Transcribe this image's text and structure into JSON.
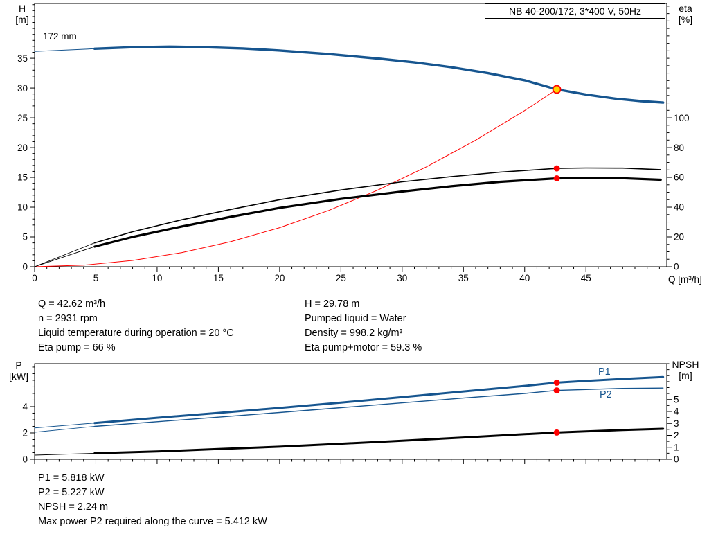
{
  "title_box": "NB 40-200/172, 3*400 V, 50Hz",
  "impeller_label": "172 mm",
  "axis_labels": {
    "h": "H",
    "h_unit": "[m]",
    "eta": "eta",
    "eta_unit": "[%]",
    "q": "Q [m³/h]",
    "p": "P",
    "p_unit": "[kW]",
    "npsh": "NPSH",
    "npsh_unit": "[m]"
  },
  "curve_labels": {
    "p1": "P1",
    "p2": "P2"
  },
  "info_top_left": [
    "Q = 42.62 m³/h",
    "n = 2931 rpm",
    "Liquid temperature during operation = 20 °C",
    "Eta pump = 66 %"
  ],
  "info_top_right": [
    "H = 29.78 m",
    "Pumped liquid = Water",
    "Density = 998.2 kg/m³",
    "Eta pump+motor = 59.3 %"
  ],
  "info_bottom": [
    "P1 = 5.818 kW",
    "P2 = 5.227 kW",
    "NPSH = 2.24 m",
    "Max power P2 required along the curve = 5.412 kW"
  ],
  "colors": {
    "curve_blue": "#16558f",
    "curve_black": "#000000",
    "curve_red": "#ff0000",
    "marker_red": "#ff0000",
    "duty_point_fill": "#ffd500"
  },
  "duty_point": {
    "q_m3h": 42.62,
    "h_m": 29.78,
    "eta_pump_pct": 66,
    "eta_pump_motor_pct": 59.3,
    "p1_kw": 5.818,
    "p2_kw": 5.227,
    "npsh_m": 2.24
  },
  "chart_data": [
    {
      "id": "head_eta_chart",
      "type": "line",
      "title": "NB 40-200/172, 3*400 V, 50Hz",
      "xlabel": "Q [m³/h]",
      "ylabel_left": "H [m]",
      "ylabel_right": "eta [%]",
      "grid": false,
      "plot": {
        "l": 50,
        "t": 5,
        "r": 963,
        "b": 385
      },
      "x_range": [
        0,
        51.6
      ],
      "y_left_range": [
        0,
        44.2
      ],
      "y_right_range": [
        0,
        176.8
      ],
      "x_ticks": {
        "majors": [
          0,
          5,
          10,
          15,
          20,
          25,
          30,
          35,
          40,
          45
        ],
        "minor_step": 1,
        "labels": true
      },
      "y_left_ticks": {
        "majors": [
          0,
          5,
          10,
          15,
          20,
          25,
          30,
          35
        ],
        "minor_step": 1,
        "labels": true
      },
      "y_right_ticks": {
        "majors": [
          0,
          20,
          40,
          60,
          80,
          100
        ],
        "minor_step": 5,
        "labels": true
      },
      "series": [
        {
          "name": "system-curve",
          "axis": "left",
          "color": "#ff0000",
          "width": 1,
          "points": [
            [
              0,
              0
            ],
            [
              4,
              0.26
            ],
            [
              8,
              1.05
            ],
            [
              12,
              2.36
            ],
            [
              16,
              4.2
            ],
            [
              20,
              6.56
            ],
            [
              24,
              9.44
            ],
            [
              28,
              12.85
            ],
            [
              32,
              16.79
            ],
            [
              36,
              21.25
            ],
            [
              40,
              26.22
            ],
            [
              42.62,
              29.78
            ]
          ]
        },
        {
          "name": "eta-pump-curve-lead",
          "axis": "right",
          "color": "#000000",
          "width": 0.9,
          "points": [
            [
              0,
              0
            ],
            [
              4.9,
              16
            ]
          ]
        },
        {
          "name": "eta-pump-curve",
          "axis": "right",
          "color": "#000000",
          "width": 1.6,
          "points": [
            [
              4.9,
              16
            ],
            [
              8,
              23.5
            ],
            [
              12,
              31.5
            ],
            [
              16,
              38.5
            ],
            [
              20,
              45
            ],
            [
              25,
              51.5
            ],
            [
              30,
              57
            ],
            [
              34,
              60.5
            ],
            [
              38,
              63.5
            ],
            [
              42.62,
              66
            ],
            [
              45,
              66.3
            ],
            [
              48,
              66.2
            ],
            [
              51.1,
              65.2
            ]
          ]
        },
        {
          "name": "eta-pump-motor-curve-lead",
          "axis": "right",
          "color": "#000000",
          "width": 0.9,
          "points": [
            [
              0,
              0
            ],
            [
              4.9,
              13.5
            ]
          ]
        },
        {
          "name": "eta-pump-motor-curve",
          "axis": "right",
          "color": "#000000",
          "width": 3.2,
          "points": [
            [
              4.9,
              13.5
            ],
            [
              8,
              20
            ],
            [
              12,
              27
            ],
            [
              16,
              33.5
            ],
            [
              20,
              39.5
            ],
            [
              25,
              45.5
            ],
            [
              30,
              50.5
            ],
            [
              34,
              54
            ],
            [
              38,
              57
            ],
            [
              42.62,
              59.3
            ],
            [
              45,
              59.6
            ],
            [
              48,
              59.4
            ],
            [
              51.1,
              58.4
            ]
          ]
        },
        {
          "name": "head-curve-lead",
          "axis": "left",
          "color": "#16558f",
          "width": 1,
          "points": [
            [
              0,
              36.15
            ],
            [
              4.9,
              36.6
            ]
          ]
        },
        {
          "name": "head-curve",
          "axis": "left",
          "color": "#16558f",
          "width": 3.4,
          "points": [
            [
              4.9,
              36.6
            ],
            [
              8,
              36.85
            ],
            [
              11,
              36.95
            ],
            [
              14,
              36.85
            ],
            [
              17,
              36.65
            ],
            [
              20,
              36.3
            ],
            [
              24,
              35.7
            ],
            [
              28,
              34.95
            ],
            [
              31,
              34.3
            ],
            [
              34,
              33.5
            ],
            [
              37,
              32.5
            ],
            [
              40,
              31.3
            ],
            [
              42.62,
              29.78
            ],
            [
              45,
              28.9
            ],
            [
              47.5,
              28.2
            ],
            [
              49.5,
              27.8
            ],
            [
              51.3,
              27.55
            ]
          ]
        }
      ],
      "markers": [
        {
          "name": "eta-pump-duty-marker",
          "axis": "right",
          "q": 42.62,
          "v": 66,
          "r": 4.5,
          "fill": "#ff0000",
          "interactable": false
        },
        {
          "name": "eta-pump-motor-duty-marker",
          "axis": "right",
          "q": 42.62,
          "v": 59.3,
          "r": 4.5,
          "fill": "#ff0000",
          "interactable": false
        },
        {
          "name": "operating-point",
          "axis": "left",
          "q": 42.62,
          "v": 29.78,
          "r": 5.5,
          "fill": "#ffd500",
          "stroke": "#ff0000",
          "stroke_width": 1.8,
          "interactable": true
        }
      ]
    },
    {
      "id": "power_npsh_chart",
      "type": "line",
      "title": "",
      "xlabel": "",
      "ylabel_left": "P [kW]",
      "ylabel_right": "NPSH [m]",
      "grid": false,
      "plot": {
        "l": 50,
        "t": 525,
        "r": 963,
        "b": 663
      },
      "x_range": [
        0,
        51.6
      ],
      "y_left_range": [
        0,
        7.26
      ],
      "y_right_range": [
        0,
        8
      ],
      "x_ticks": {
        "majors": [
          0,
          5,
          10,
          15,
          20,
          25,
          30,
          35,
          40,
          45
        ],
        "minor_step": 1,
        "labels": false
      },
      "y_left_ticks": {
        "majors": [
          0,
          2,
          4
        ],
        "minor_step": 0.5,
        "labels": true
      },
      "y_right_ticks": {
        "majors": [
          0,
          1,
          2,
          3,
          4,
          5
        ],
        "minor_step": 0.5,
        "labels": true
      },
      "series": [
        {
          "name": "p1-curve-lead",
          "axis": "left",
          "color": "#16558f",
          "width": 1,
          "points": [
            [
              0,
              2.38
            ],
            [
              4.9,
              2.75
            ]
          ]
        },
        {
          "name": "p1-curve",
          "axis": "left",
          "color": "#16558f",
          "width": 3,
          "points": [
            [
              4.9,
              2.75
            ],
            [
              10,
              3.15
            ],
            [
              15,
              3.52
            ],
            [
              20,
              3.9
            ],
            [
              25,
              4.3
            ],
            [
              30,
              4.72
            ],
            [
              35,
              5.15
            ],
            [
              40,
              5.57
            ],
            [
              42.62,
              5.818
            ],
            [
              45,
              5.95
            ],
            [
              48,
              6.1
            ],
            [
              51.3,
              6.25
            ]
          ]
        },
        {
          "name": "p2-curve-lead",
          "axis": "left",
          "color": "#16558f",
          "width": 0.9,
          "points": [
            [
              0,
              2.05
            ],
            [
              4.9,
              2.5
            ]
          ]
        },
        {
          "name": "p2-curve",
          "axis": "left",
          "color": "#16558f",
          "width": 1.4,
          "points": [
            [
              4.9,
              2.5
            ],
            [
              10,
              2.85
            ],
            [
              15,
              3.2
            ],
            [
              20,
              3.55
            ],
            [
              25,
              3.92
            ],
            [
              30,
              4.28
            ],
            [
              35,
              4.65
            ],
            [
              40,
              5.0
            ],
            [
              42.62,
              5.227
            ],
            [
              45,
              5.3
            ],
            [
              48,
              5.38
            ],
            [
              51.3,
              5.41
            ]
          ]
        },
        {
          "name": "npsh-curve-lead",
          "axis": "right",
          "color": "#000000",
          "width": 0.9,
          "points": [
            [
              0,
              0.35
            ],
            [
              4.9,
              0.5
            ]
          ]
        },
        {
          "name": "npsh-curve",
          "axis": "right",
          "color": "#000000",
          "width": 3,
          "points": [
            [
              4.9,
              0.5
            ],
            [
              10,
              0.65
            ],
            [
              15,
              0.85
            ],
            [
              20,
              1.05
            ],
            [
              25,
              1.3
            ],
            [
              30,
              1.55
            ],
            [
              35,
              1.82
            ],
            [
              40,
              2.1
            ],
            [
              42.62,
              2.24
            ],
            [
              45,
              2.33
            ],
            [
              48,
              2.45
            ],
            [
              51.3,
              2.55
            ]
          ]
        }
      ],
      "markers": [
        {
          "name": "p1-duty-marker",
          "axis": "left",
          "q": 42.62,
          "v": 5.818,
          "r": 4.5,
          "fill": "#ff0000",
          "interactable": false
        },
        {
          "name": "p2-duty-marker",
          "axis": "left",
          "q": 42.62,
          "v": 5.227,
          "r": 4.5,
          "fill": "#ff0000",
          "interactable": false
        },
        {
          "name": "npsh-duty-marker",
          "axis": "right",
          "q": 42.62,
          "v": 2.24,
          "r": 4.5,
          "fill": "#ff0000",
          "interactable": false
        }
      ]
    }
  ]
}
